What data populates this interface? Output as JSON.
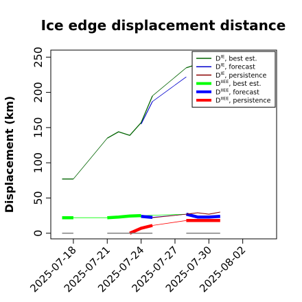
{
  "chart_data": {
    "type": "line",
    "title": "Ice edge displacement distance",
    "xlabel": "",
    "ylabel": "Displacement (km)",
    "ylim": [
      -8,
      260
    ],
    "xlim": [
      "2025-07-16",
      "2025-08-05"
    ],
    "y_ticks": [
      0,
      50,
      100,
      150,
      200,
      250
    ],
    "x_ticks": [
      {
        "date": "2025-07-18",
        "label": "2025-07-18",
        "color": "#000000"
      },
      {
        "date": "2025-07-21",
        "label": "2025-07-21",
        "color": "#000000"
      },
      {
        "date": "2025-07-24",
        "label": "2025-07-24",
        "color": "#228B22"
      },
      {
        "date": "2025-07-27",
        "label": "2025-07-27",
        "color": "#000000"
      },
      {
        "date": "2025-07-30",
        "label": "2025-07-30",
        "color": "#000000"
      },
      {
        "date": "2025-08-02",
        "label": "2025-08-02",
        "color": "#000000"
      }
    ],
    "legend_position": "top-right",
    "series": [
      {
        "name": "D^IE, best est.",
        "legend_main": "D",
        "legend_sup": "IE",
        "legend_rest": ", best est.",
        "color": "#006400",
        "width": 1.3,
        "legend_width": 1.5,
        "segments": [
          [
            [
              "2025-07-17",
              77
            ],
            [
              "2025-07-18",
              77
            ]
          ],
          [
            [
              "2025-07-21",
              135
            ],
            [
              "2025-07-22",
              144
            ],
            [
              "2025-07-23",
              139
            ],
            [
              "2025-07-24",
              157
            ],
            [
              "2025-07-25",
              195
            ]
          ],
          [
            [
              "2025-07-28",
              235
            ],
            [
              "2025-07-29",
              240
            ]
          ]
        ],
        "connectors": [
          [
            [
              "2025-07-18",
              77
            ],
            [
              "2025-07-21",
              135
            ]
          ],
          [
            [
              "2025-07-25",
              195
            ],
            [
              "2025-07-28",
              235
            ]
          ]
        ]
      },
      {
        "name": "D^IE, forecast",
        "legend_main": "D",
        "legend_sup": "IE",
        "legend_rest": ", forecast",
        "color": "#0000CD",
        "width": 1.1,
        "legend_width": 1.5,
        "segments": [
          [
            [
              "2025-07-24",
              155
            ],
            [
              "2025-07-25",
              187
            ]
          ]
        ],
        "connectors": [
          [
            [
              "2025-07-25",
              187
            ],
            [
              "2025-07-28",
              222
            ]
          ]
        ]
      },
      {
        "name": "D^IE, persistence",
        "legend_main": "D",
        "legend_sup": "IE",
        "legend_rest": ", persistence",
        "color": "#8B0000",
        "width": 1.1,
        "legend_width": 1.5,
        "segments": [],
        "connectors": []
      },
      {
        "name": "D^IIEE, best est.",
        "legend_main": "D",
        "legend_sup": "IIEE",
        "legend_rest": ", best est.",
        "color": "#00FF00",
        "width": 4.5,
        "legend_width": 4,
        "segments": [
          [
            [
              "2025-07-17",
              22
            ],
            [
              "2025-07-18",
              22
            ]
          ],
          [
            [
              "2025-07-21",
              22
            ],
            [
              "2025-07-22",
              23
            ],
            [
              "2025-07-23",
              24.5
            ],
            [
              "2025-07-24",
              25
            ]
          ]
        ],
        "connectors": [
          [
            [
              "2025-07-18",
              22
            ],
            [
              "2025-07-21",
              22
            ]
          ],
          [
            [
              "2025-07-24",
              25
            ],
            [
              "2025-07-28",
              27
            ]
          ]
        ]
      },
      {
        "name": "D^IIEE, forecast",
        "legend_main": "D",
        "legend_sup": "IIEE",
        "legend_rest": ", forecast",
        "color": "#0000FF",
        "width": 4.5,
        "legend_width": 4,
        "segments": [
          [
            [
              "2025-07-24",
              24
            ],
            [
              "2025-07-25",
              22.5
            ]
          ],
          [
            [
              "2025-07-28",
              27
            ],
            [
              "2025-07-29",
              23
            ],
            [
              "2025-07-30",
              23
            ],
            [
              "2025-07-31",
              24
            ]
          ]
        ],
        "connectors": [
          [
            [
              "2025-07-25",
              22.5
            ],
            [
              "2025-07-28",
              27
            ]
          ]
        ]
      },
      {
        "name": "D^IIEE, persistence",
        "legend_main": "D",
        "legend_sup": "IIEE",
        "legend_rest": ", persistence",
        "color": "#FF0000",
        "width": 4.5,
        "legend_width": 4,
        "segments": [
          [
            [
              "2025-07-23",
              0
            ],
            [
              "2025-07-24",
              7
            ],
            [
              "2025-07-25",
              11
            ]
          ],
          [
            [
              "2025-07-28",
              18
            ],
            [
              "2025-07-29",
              18
            ],
            [
              "2025-07-30",
              18
            ],
            [
              "2025-07-31",
              18
            ]
          ]
        ],
        "connectors": [
          [
            [
              "2025-07-25",
              11
            ],
            [
              "2025-07-28",
              18
            ]
          ]
        ]
      },
      {
        "name": "",
        "color": "#8B0000",
        "width": 1.1,
        "legend": false,
        "segments": [
          [
            [
              "2025-07-28",
              27
            ],
            [
              "2025-07-29",
              29
            ],
            [
              "2025-07-30",
              27
            ],
            [
              "2025-07-31",
              30
            ]
          ]
        ],
        "connectors": [
          [
            [
              "2025-07-25",
              22
            ],
            [
              "2025-07-28",
              27
            ]
          ]
        ]
      },
      {
        "name": "",
        "color": "#808080",
        "width": 1.5,
        "legend": false,
        "segments": [
          [
            [
              "2025-07-17",
              0
            ],
            [
              "2025-07-18",
              0
            ]
          ],
          [
            [
              "2025-07-21",
              0
            ],
            [
              "2025-07-25",
              0
            ]
          ],
          [
            [
              "2025-07-28",
              0
            ],
            [
              "2025-07-31",
              0
            ]
          ]
        ],
        "connectors": []
      }
    ]
  }
}
